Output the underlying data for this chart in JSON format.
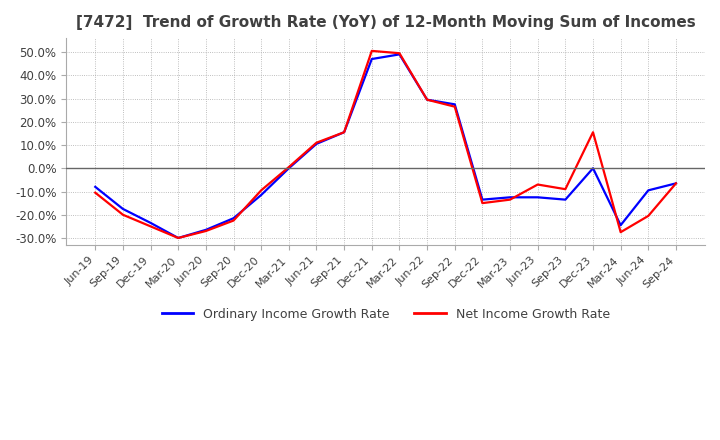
{
  "title": "[7472]  Trend of Growth Rate (YoY) of 12-Month Moving Sum of Incomes",
  "title_fontsize": 11,
  "ylim": [
    -0.33,
    0.56
  ],
  "yticks": [
    -0.3,
    -0.2,
    -0.1,
    0.0,
    0.1,
    0.2,
    0.3,
    0.4,
    0.5
  ],
  "legend_labels": [
    "Ordinary Income Growth Rate",
    "Net Income Growth Rate"
  ],
  "dates": [
    "Jun-19",
    "Sep-19",
    "Dec-19",
    "Mar-20",
    "Jun-20",
    "Sep-20",
    "Dec-20",
    "Mar-21",
    "Jun-21",
    "Sep-21",
    "Dec-21",
    "Mar-22",
    "Jun-22",
    "Sep-22",
    "Dec-22",
    "Mar-23",
    "Jun-23",
    "Sep-23",
    "Dec-23",
    "Mar-24",
    "Jun-24",
    "Sep-24"
  ],
  "ordinary_income": [
    -0.08,
    -0.175,
    -0.235,
    -0.3,
    -0.265,
    -0.215,
    -0.115,
    0.0,
    0.105,
    0.155,
    0.47,
    0.49,
    0.295,
    0.275,
    -0.135,
    -0.125,
    -0.125,
    -0.135,
    0.0,
    -0.245,
    -0.095,
    -0.065
  ],
  "net_income": [
    -0.105,
    -0.2,
    -0.25,
    -0.3,
    -0.27,
    -0.225,
    -0.095,
    0.005,
    0.11,
    0.155,
    0.505,
    0.495,
    0.295,
    0.265,
    -0.15,
    -0.135,
    -0.07,
    -0.09,
    0.155,
    -0.275,
    -0.205,
    -0.065
  ],
  "background_color": "#ffffff",
  "plot_bg_color": "#ffffff",
  "line_color_ordinary": "#0000ff",
  "line_color_net": "#ff0000",
  "grid_color": "#aaaaaa",
  "title_color": "#404040"
}
